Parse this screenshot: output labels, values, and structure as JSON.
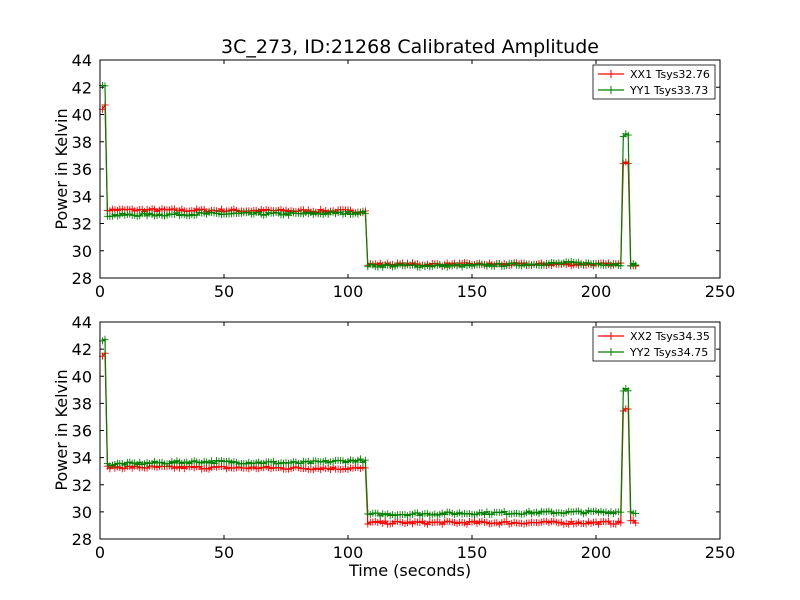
{
  "figure": {
    "title": "3C_273, ID:21268 Calibrated Amplitude",
    "xlabel": "Time (seconds)"
  },
  "colors": {
    "xx": "#ff0000",
    "yy": "#008000"
  },
  "chart_data": [
    {
      "type": "line",
      "ylabel": "Power in Kelvin",
      "xlim": [
        0,
        250
      ],
      "ylim": [
        28,
        44
      ],
      "xticks": [
        "0",
        "50",
        "100",
        "150",
        "200",
        "250"
      ],
      "yticks": [
        "28",
        "30",
        "32",
        "34",
        "36",
        "38",
        "40",
        "42",
        "44"
      ],
      "legend_position": "top-right",
      "series": [
        {
          "name": "XX1 Tsys32.76",
          "color": "#ff0000",
          "baseline": [
            [
              1,
              40.5
            ],
            [
              2,
              40.6
            ],
            [
              3,
              33.0
            ],
            [
              107,
              32.9
            ],
            [
              108,
              29.0
            ],
            [
              210,
              29.0
            ],
            [
              211,
              36.5
            ],
            [
              212,
              36.6
            ],
            [
              213,
              36.5
            ],
            [
              214,
              29.0
            ],
            [
              216,
              29.0
            ]
          ],
          "noise": 0.12
        },
        {
          "name": "YY1 Tsys33.73",
          "color": "#008000",
          "baseline": [
            [
              1,
              42.1
            ],
            [
              2,
              42.0
            ],
            [
              3,
              32.6
            ],
            [
              40,
              32.7
            ],
            [
              80,
              32.7
            ],
            [
              107,
              32.8
            ],
            [
              108,
              28.9
            ],
            [
              150,
              28.9
            ],
            [
              190,
              29.1
            ],
            [
              210,
              29.0
            ],
            [
              211,
              38.5
            ],
            [
              212,
              38.5
            ],
            [
              213,
              38.4
            ],
            [
              214,
              29.0
            ],
            [
              216,
              29.0
            ]
          ],
          "noise": 0.12
        }
      ]
    },
    {
      "type": "line",
      "ylabel": "Power in Kelvin",
      "xlim": [
        0,
        250
      ],
      "ylim": [
        28,
        44
      ],
      "xticks": [
        "0",
        "50",
        "100",
        "150",
        "200",
        "250"
      ],
      "yticks": [
        "28",
        "30",
        "32",
        "34",
        "36",
        "38",
        "40",
        "42",
        "44"
      ],
      "legend_position": "top-right",
      "series": [
        {
          "name": "XX2 Tsys34.35",
          "color": "#ff0000",
          "baseline": [
            [
              1,
              41.5
            ],
            [
              2,
              41.6
            ],
            [
              3,
              33.3
            ],
            [
              107,
              33.2
            ],
            [
              108,
              29.2
            ],
            [
              210,
              29.2
            ],
            [
              211,
              37.5
            ],
            [
              212,
              37.6
            ],
            [
              213,
              37.5
            ],
            [
              214,
              29.3
            ],
            [
              216,
              29.3
            ]
          ],
          "noise": 0.12
        },
        {
          "name": "YY2 Tsys34.75",
          "color": "#008000",
          "baseline": [
            [
              1,
              42.7
            ],
            [
              2,
              42.7
            ],
            [
              3,
              33.5
            ],
            [
              40,
              33.7
            ],
            [
              80,
              33.6
            ],
            [
              105,
              33.8
            ],
            [
              107,
              33.7
            ],
            [
              108,
              29.8
            ],
            [
              150,
              29.9
            ],
            [
              210,
              30.0
            ],
            [
              211,
              39.0
            ],
            [
              212,
              39.1
            ],
            [
              213,
              39.0
            ],
            [
              214,
              30.0
            ],
            [
              216,
              30.0
            ]
          ],
          "noise": 0.12
        }
      ]
    }
  ]
}
